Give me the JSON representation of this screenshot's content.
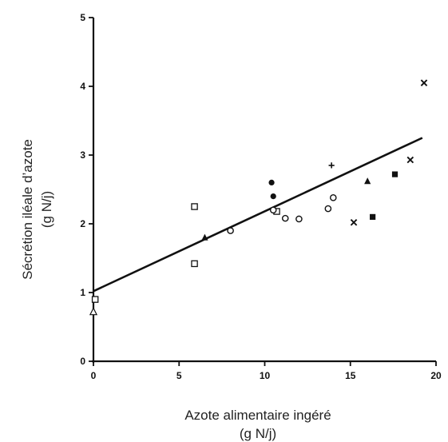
{
  "chart_data": {
    "type": "scatter",
    "title": "",
    "xlabel": [
      "Azote alimentaire ingéré",
      "(g N/j)"
    ],
    "ylabel": [
      "Sécrétion iléale d’azote",
      "(g N/j)"
    ],
    "xlim": [
      0,
      20
    ],
    "ylim": [
      0,
      5
    ],
    "xticks": [
      0,
      5,
      10,
      15,
      20
    ],
    "yticks": [
      0,
      1,
      2,
      3,
      4,
      5
    ],
    "xtick_labels": [
      "0",
      "5",
      "10",
      "15",
      "20"
    ],
    "ytick_labels": [
      "0",
      "1",
      "2",
      "3",
      "4",
      "5"
    ],
    "grid": false,
    "legend": "none",
    "regression_line": {
      "x": [
        0,
        19.2
      ],
      "y": [
        1.02,
        3.25
      ]
    },
    "points": [
      {
        "x": 0,
        "y": 0.72,
        "marker": "open-triangle"
      },
      {
        "x": 0.1,
        "y": 0.9,
        "marker": "open-square"
      },
      {
        "x": 5.9,
        "y": 2.25,
        "marker": "open-square"
      },
      {
        "x": 5.9,
        "y": 1.42,
        "marker": "open-square"
      },
      {
        "x": 10.7,
        "y": 2.18,
        "marker": "open-square"
      },
      {
        "x": 6.5,
        "y": 1.8,
        "marker": "filled-triangle"
      },
      {
        "x": 16,
        "y": 2.62,
        "marker": "filled-triangle"
      },
      {
        "x": 8,
        "y": 1.9,
        "marker": "open-circle"
      },
      {
        "x": 11.2,
        "y": 2.08,
        "marker": "open-circle"
      },
      {
        "x": 12,
        "y": 2.07,
        "marker": "open-circle"
      },
      {
        "x": 13.7,
        "y": 2.22,
        "marker": "open-circle"
      },
      {
        "x": 14,
        "y": 2.38,
        "marker": "open-circle"
      },
      {
        "x": 10.5,
        "y": 2.2,
        "marker": "open-circle"
      },
      {
        "x": 10.4,
        "y": 2.6,
        "marker": "filled-circle"
      },
      {
        "x": 10.5,
        "y": 2.4,
        "marker": "filled-circle"
      },
      {
        "x": 13.9,
        "y": 2.85,
        "marker": "plus"
      },
      {
        "x": 15.2,
        "y": 2.02,
        "marker": "cross"
      },
      {
        "x": 18.5,
        "y": 2.93,
        "marker": "cross"
      },
      {
        "x": 19.3,
        "y": 4.05,
        "marker": "cross"
      },
      {
        "x": 16.3,
        "y": 2.1,
        "marker": "filled-square"
      },
      {
        "x": 17.6,
        "y": 2.72,
        "marker": "filled-square"
      }
    ]
  }
}
